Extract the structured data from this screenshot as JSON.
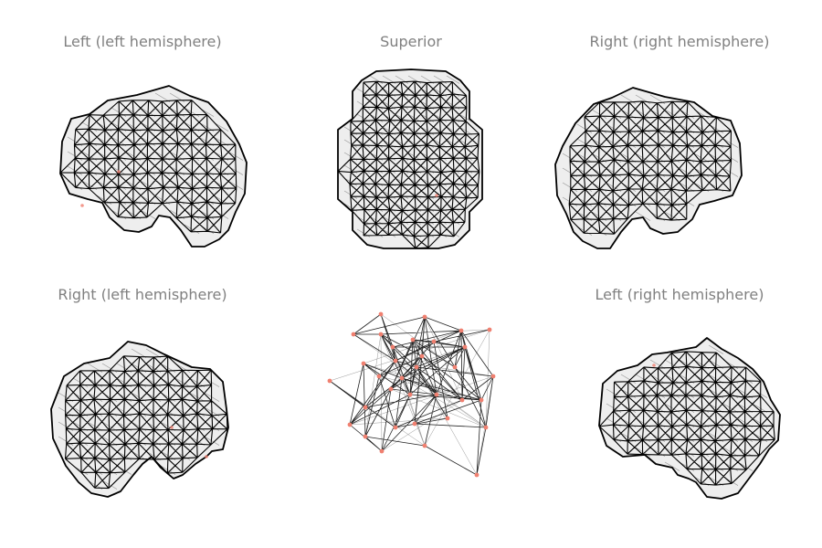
{
  "panels": [
    {
      "title": "Left (left hemisphere)",
      "view": "lateral-left"
    },
    {
      "title": "Superior",
      "view": "superior"
    },
    {
      "title": "Right (right hemisphere)",
      "view": "lateral-right"
    },
    {
      "title": "Right (left hemisphere)",
      "view": "medial-left"
    },
    {
      "title": "",
      "view": "network-graph"
    },
    {
      "title": "Left (right hemisphere)",
      "view": "medial-right"
    }
  ],
  "colors": {
    "title_text": "#808080",
    "mesh_edge": "#000000",
    "mesh_fill": "#eeeeee",
    "node": "#f08070",
    "network_edge": "#222222"
  }
}
